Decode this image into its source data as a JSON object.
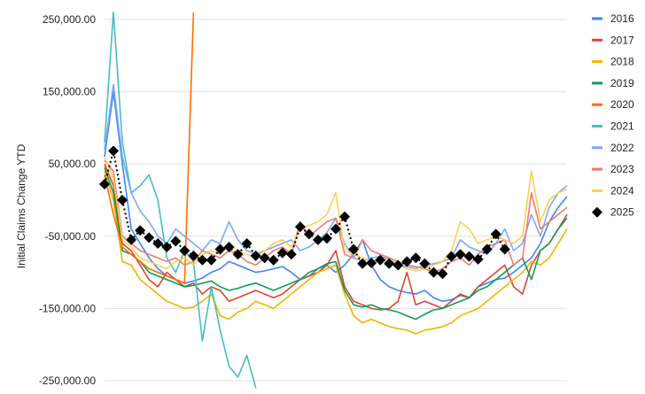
{
  "chart_data": {
    "type": "line",
    "title": "",
    "xlabel": "",
    "ylabel": "Initial Claims Change YTD",
    "ylim": [
      -250000,
      250000
    ],
    "yticks": [
      250000,
      150000,
      50000,
      -50000,
      -150000,
      -250000
    ],
    "ytick_labels": [
      "250,000.00",
      "150,000.00",
      "50,000.00",
      "-50,000.00",
      "-150,000.00",
      "-250,000.00"
    ],
    "grid": true,
    "legend_position": "right",
    "x": [
      1,
      2,
      3,
      4,
      5,
      6,
      7,
      8,
      9,
      10,
      11,
      12,
      13,
      14,
      15,
      16,
      17,
      18,
      19,
      20,
      21,
      22,
      23,
      24,
      25,
      26,
      27,
      28,
      29,
      30,
      31,
      32,
      33,
      34,
      35,
      36,
      37,
      38,
      39,
      40,
      41,
      42,
      43,
      44,
      45,
      46,
      47,
      48,
      49,
      50,
      51,
      52,
      53
    ],
    "xlim": [
      1,
      53
    ],
    "series": [
      {
        "name": "2016",
        "color": "#4285f4",
        "values": [
          60000,
          150000,
          50000,
          -40000,
          -60000,
          -80000,
          -95000,
          -105000,
          -110000,
          -115000,
          -112000,
          -108000,
          -100000,
          -95000,
          -85000,
          -90000,
          -95000,
          -100000,
          -98000,
          -95000,
          -92000,
          -100000,
          -110000,
          -105000,
          -95000,
          -90000,
          -100000,
          -90000,
          -75000,
          -55000,
          -90000,
          -110000,
          -120000,
          -125000,
          -128000,
          -130000,
          -125000,
          -135000,
          -140000,
          -138000,
          -132000,
          -135000,
          -120000,
          -115000,
          -110000,
          -108000,
          -100000,
          -90000,
          -80000,
          -60000,
          -30000,
          -10000,
          5000
        ]
      },
      {
        "name": "2017",
        "color": "#db4437",
        "values": [
          50000,
          20000,
          -60000,
          -70000,
          -90000,
          -110000,
          -120000,
          -100000,
          -110000,
          -120000,
          -115000,
          -130000,
          -120000,
          -125000,
          -140000,
          -135000,
          -130000,
          -125000,
          -130000,
          -135000,
          -130000,
          -120000,
          -110000,
          -105000,
          -100000,
          -90000,
          -70000,
          -120000,
          -140000,
          -145000,
          -150000,
          -152000,
          -150000,
          -140000,
          -100000,
          -145000,
          -140000,
          -145000,
          -150000,
          -140000,
          -130000,
          -135000,
          -120000,
          -110000,
          -100000,
          -90000,
          -120000,
          -130000,
          -90000,
          -70000,
          -60000,
          -40000,
          -20000
        ]
      },
      {
        "name": "2018",
        "color": "#f4b400",
        "values": [
          40000,
          0,
          -85000,
          -90000,
          -110000,
          -120000,
          -130000,
          -140000,
          -145000,
          -150000,
          -148000,
          -140000,
          -130000,
          -160000,
          -165000,
          -155000,
          -150000,
          -140000,
          -145000,
          -150000,
          -140000,
          -130000,
          -120000,
          -110000,
          -100000,
          -95000,
          -90000,
          -130000,
          -160000,
          -170000,
          -165000,
          -170000,
          -175000,
          -178000,
          -180000,
          -185000,
          -180000,
          -178000,
          -175000,
          -170000,
          -160000,
          -155000,
          -150000,
          -140000,
          -130000,
          -120000,
          -110000,
          -100000,
          -85000,
          -90000,
          -80000,
          -60000,
          -40000
        ]
      },
      {
        "name": "2019",
        "color": "#0f9d58",
        "values": [
          45000,
          10000,
          -70000,
          -75000,
          -85000,
          -100000,
          -105000,
          -110000,
          -115000,
          -120000,
          -118000,
          -115000,
          -112000,
          -120000,
          -125000,
          -122000,
          -118000,
          -115000,
          -120000,
          -125000,
          -120000,
          -115000,
          -110000,
          -100000,
          -95000,
          -88000,
          -85000,
          -125000,
          -145000,
          -148000,
          -145000,
          -150000,
          -152000,
          -155000,
          -160000,
          -165000,
          -158000,
          -152000,
          -150000,
          -145000,
          -140000,
          -135000,
          -125000,
          -120000,
          -110000,
          -100000,
          -90000,
          -80000,
          -110000,
          -70000,
          -60000,
          -40000,
          -25000
        ]
      },
      {
        "name": "2020",
        "color": "#ff6d00",
        "values": [
          35000,
          -20000,
          -65000,
          -75000,
          -85000,
          -95000,
          -100000,
          -105000,
          -110000,
          -115000,
          260000,
          null,
          null,
          null,
          null,
          null,
          null,
          null,
          null,
          null,
          null,
          null,
          null,
          null,
          null,
          null,
          null,
          null,
          null,
          null,
          null,
          null,
          null,
          null,
          null,
          null,
          null,
          null,
          null,
          null,
          null,
          null,
          null,
          null,
          null,
          null,
          null,
          null,
          null,
          null,
          null,
          null,
          null
        ]
      },
      {
        "name": "2021",
        "color": "#46bdc6",
        "values": [
          80000,
          260000,
          80000,
          10000,
          20000,
          35000,
          0,
          -80000,
          -100000,
          -70000,
          -85000,
          -195000,
          -120000,
          -180000,
          -230000,
          -245000,
          -215000,
          -260000,
          null,
          null,
          null,
          null,
          null,
          null,
          null,
          null,
          null,
          null,
          null,
          null,
          null,
          null,
          null,
          null,
          null,
          null,
          null,
          null,
          null,
          null,
          null,
          null,
          null,
          null,
          null,
          null,
          null,
          null,
          null,
          null,
          null,
          null,
          null
        ]
      },
      {
        "name": "2022",
        "color": "#7baaf7",
        "values": [
          70000,
          160000,
          60000,
          10000,
          -15000,
          -30000,
          -50000,
          -60000,
          -40000,
          -50000,
          -60000,
          -70000,
          -55000,
          -60000,
          -30000,
          -55000,
          -70000,
          -75000,
          -70000,
          -65000,
          -60000,
          -55000,
          -70000,
          -65000,
          -55000,
          -45000,
          -25000,
          -60000,
          -80000,
          -85000,
          -80000,
          -78000,
          -82000,
          -90000,
          -92000,
          -95000,
          -90000,
          -88000,
          -85000,
          -80000,
          -55000,
          -65000,
          -70000,
          -75000,
          -60000,
          -40000,
          -70000,
          -60000,
          -20000,
          -50000,
          -10000,
          10000,
          20000
        ]
      },
      {
        "name": "2023",
        "color": "#f07b72",
        "values": [
          55000,
          40000,
          -50000,
          -60000,
          -70000,
          -75000,
          -80000,
          -85000,
          -80000,
          -90000,
          -85000,
          -70000,
          -75000,
          -80000,
          -70000,
          -75000,
          -85000,
          -90000,
          -80000,
          -70000,
          -65000,
          -75000,
          -30000,
          -50000,
          -40000,
          -30000,
          -25000,
          -75000,
          -80000,
          -55000,
          -70000,
          -75000,
          -80000,
          -85000,
          -90000,
          -92000,
          -95000,
          -100000,
          -95000,
          -85000,
          -80000,
          -90000,
          -75000,
          -65000,
          -60000,
          -55000,
          -90000,
          -80000,
          10000,
          -40000,
          -30000,
          -20000,
          -10000
        ]
      },
      {
        "name": "2024",
        "color": "#fcd04f",
        "values": [
          60000,
          30000,
          -55000,
          -65000,
          -80000,
          -85000,
          -90000,
          -95000,
          -85000,
          -80000,
          -90000,
          -75000,
          -70000,
          -75000,
          -60000,
          -70000,
          -75000,
          -80000,
          -70000,
          -60000,
          -55000,
          -65000,
          -40000,
          -35000,
          -30000,
          -20000,
          10000,
          -70000,
          -75000,
          -80000,
          -85000,
          -80000,
          -85000,
          -90000,
          -95000,
          -98000,
          -95000,
          -90000,
          -85000,
          -70000,
          -30000,
          -40000,
          -60000,
          -55000,
          -50000,
          -55000,
          -60000,
          -50000,
          40000,
          -30000,
          0,
          10000,
          15000
        ]
      },
      {
        "name": "2025",
        "color": "#000000",
        "values": [
          22000,
          68000,
          0,
          -55000,
          -42000,
          -52000,
          -60000,
          -65000,
          -57000,
          -70000,
          -77000,
          -83000,
          -83000,
          -68000,
          -65000,
          -75000,
          -60000,
          -77000,
          -80000,
          -83000,
          -73000,
          -75000,
          -37000,
          -47000,
          -55000,
          -53000,
          -40000,
          -23000,
          -68000,
          -88000,
          -87000,
          -83000,
          -88000,
          -90000,
          -85000,
          -80000,
          -88000,
          -100000,
          -102000,
          -78000,
          -75000,
          -78000,
          -82000,
          -68000,
          -47000,
          -68000,
          null,
          null,
          null,
          null,
          null,
          null,
          null
        ]
      }
    ]
  }
}
